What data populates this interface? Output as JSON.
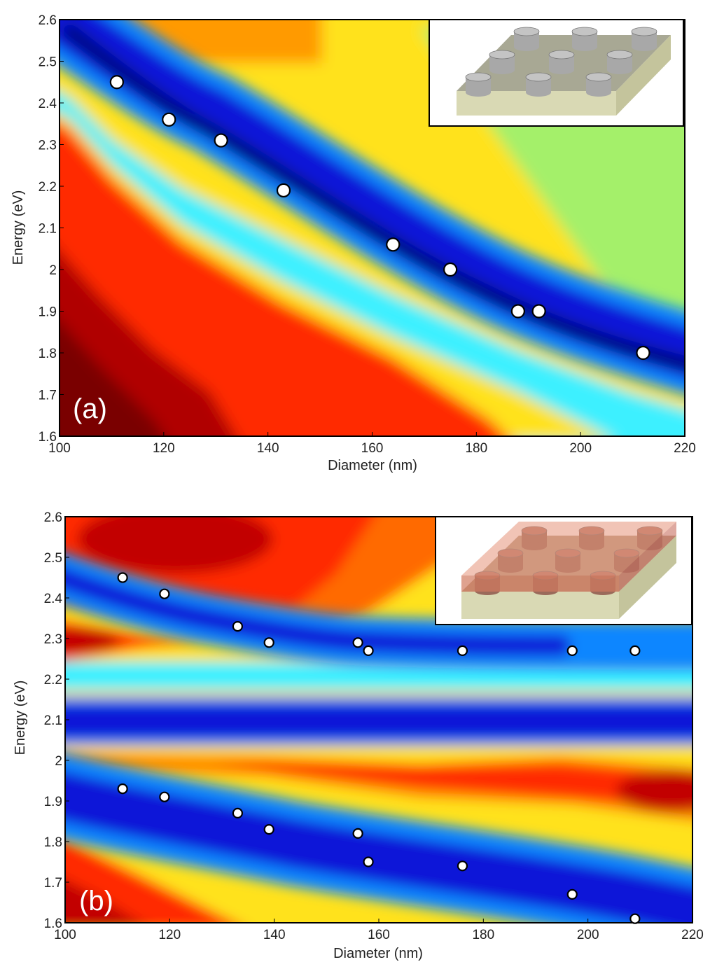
{
  "colors": {
    "marker_fill": "#ffffff",
    "marker_stroke": "#000000",
    "colormap": [
      "#7a0000",
      "#c20000",
      "#ff2a00",
      "#ff8c00",
      "#ffd000",
      "#f2ff2a",
      "#9cf06a",
      "#3cf0ff",
      "#0a86ff",
      "#0818d8",
      "#000a4a"
    ],
    "substrate": "#d9d9b4",
    "pillar": "#a8a8a8",
    "coating": "#c8846a"
  },
  "chart_data": [
    {
      "type": "heatmap",
      "panel_label": "(a)",
      "xlabel": "Diameter (nm)",
      "ylabel": "Energy (eV)",
      "xlim": [
        100,
        220
      ],
      "ylim": [
        1.6,
        2.6
      ],
      "xticks": [
        "100",
        "120",
        "140",
        "160",
        "180",
        "200",
        "220"
      ],
      "yticks": [
        "1.6",
        "1.7",
        "1.8",
        "1.9",
        "2",
        "2.1",
        "2.2",
        "2.3",
        "2.4",
        "2.5",
        "2.6"
      ],
      "inset": "pillar-array-schematic",
      "points": [
        {
          "x": 111,
          "y": 2.45
        },
        {
          "x": 121,
          "y": 2.36
        },
        {
          "x": 131,
          "y": 2.31
        },
        {
          "x": 143,
          "y": 2.19
        },
        {
          "x": 164,
          "y": 2.06
        },
        {
          "x": 175,
          "y": 2.0
        },
        {
          "x": 188,
          "y": 1.9
        },
        {
          "x": 192,
          "y": 1.9
        },
        {
          "x": 212,
          "y": 1.8
        }
      ]
    },
    {
      "type": "heatmap",
      "panel_label": "(b)",
      "xlabel": "Diameter (nm)",
      "ylabel": "Energy (eV)",
      "xlim": [
        100,
        220
      ],
      "ylim": [
        1.6,
        2.6
      ],
      "xticks": [
        "100",
        "120",
        "140",
        "160",
        "180",
        "200",
        "220"
      ],
      "yticks": [
        "1.6",
        "1.7",
        "1.8",
        "1.9",
        "2",
        "2.1",
        "2.2",
        "2.3",
        "2.4",
        "2.5",
        "2.6"
      ],
      "inset": "coated-pillar-array-schematic",
      "points_upper": [
        {
          "x": 111,
          "y": 2.45
        },
        {
          "x": 119,
          "y": 2.41
        },
        {
          "x": 133,
          "y": 2.33
        },
        {
          "x": 139,
          "y": 2.29
        },
        {
          "x": 156,
          "y": 2.29
        },
        {
          "x": 158,
          "y": 2.27
        },
        {
          "x": 176,
          "y": 2.27
        },
        {
          "x": 197,
          "y": 2.27
        },
        {
          "x": 209,
          "y": 2.27
        }
      ],
      "points_lower": [
        {
          "x": 111,
          "y": 1.93
        },
        {
          "x": 119,
          "y": 1.91
        },
        {
          "x": 133,
          "y": 1.87
        },
        {
          "x": 139,
          "y": 1.83
        },
        {
          "x": 156,
          "y": 1.82
        },
        {
          "x": 158,
          "y": 1.75
        },
        {
          "x": 176,
          "y": 1.74
        },
        {
          "x": 197,
          "y": 1.67
        },
        {
          "x": 209,
          "y": 1.61
        }
      ]
    }
  ]
}
